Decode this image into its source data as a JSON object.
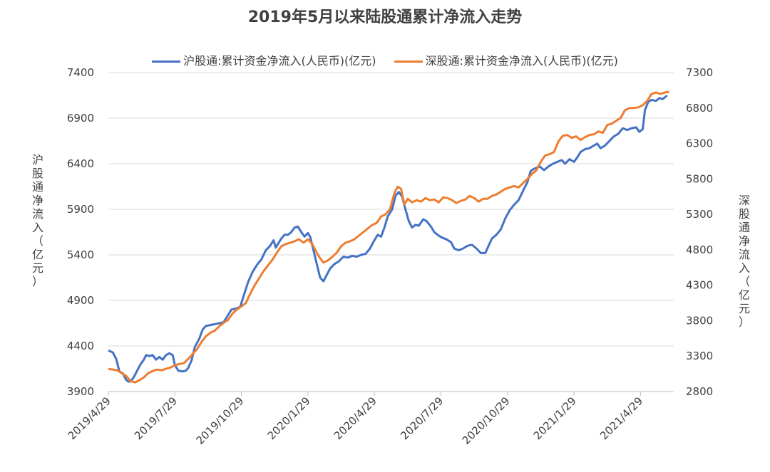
{
  "chart_data": {
    "type": "line",
    "title": "2019年5月以来陆股通累计净流入走势",
    "ylabel_left": "沪股通净流入（亿元）",
    "ylabel_right": "深股通净流入（亿元）",
    "legend_position": "top",
    "grid": true,
    "x_tick_labels": [
      "2019/4/29",
      "2019/7/29",
      "2019/10/29",
      "2020/1/29",
      "2020/4/29",
      "2020/7/29",
      "2020/10/29",
      "2021/1/29",
      "2021/4/29"
    ],
    "y_left": {
      "min": 3900,
      "max": 7400,
      "ticks": [
        3900,
        4400,
        4900,
        5400,
        5900,
        6400,
        6900,
        7400
      ]
    },
    "y_right": {
      "min": 2800,
      "max": 7300,
      "ticks": [
        2800,
        3300,
        3800,
        4300,
        4800,
        5300,
        5800,
        6300,
        6800,
        7300
      ]
    },
    "x_range_months": [
      0,
      25.5
    ],
    "series": [
      {
        "name": "沪股通:累计资金净流入(人民币)(亿元)",
        "axis": "left",
        "color": "#4472C4",
        "points": [
          [
            0,
            4350
          ],
          [
            0.2,
            4330
          ],
          [
            0.35,
            4260
          ],
          [
            0.5,
            4120
          ],
          [
            0.65,
            4100
          ],
          [
            0.8,
            4030
          ],
          [
            0.9,
            4010
          ],
          [
            1.0,
            4010
          ],
          [
            1.15,
            4060
          ],
          [
            1.3,
            4130
          ],
          [
            1.45,
            4200
          ],
          [
            1.6,
            4250
          ],
          [
            1.7,
            4300
          ],
          [
            1.85,
            4290
          ],
          [
            2.0,
            4300
          ],
          [
            2.15,
            4250
          ],
          [
            2.3,
            4280
          ],
          [
            2.45,
            4250
          ],
          [
            2.6,
            4300
          ],
          [
            2.75,
            4320
          ],
          [
            2.9,
            4300
          ],
          [
            3.0,
            4190
          ],
          [
            3.15,
            4130
          ],
          [
            3.35,
            4120
          ],
          [
            3.5,
            4130
          ],
          [
            3.6,
            4160
          ],
          [
            3.75,
            4240
          ],
          [
            3.9,
            4390
          ],
          [
            4.1,
            4480
          ],
          [
            4.25,
            4580
          ],
          [
            4.4,
            4620
          ],
          [
            4.6,
            4630
          ],
          [
            4.8,
            4640
          ],
          [
            5.0,
            4650
          ],
          [
            5.2,
            4660
          ],
          [
            5.4,
            4740
          ],
          [
            5.55,
            4800
          ],
          [
            5.75,
            4810
          ],
          [
            5.95,
            4830
          ],
          [
            6.1,
            4950
          ],
          [
            6.3,
            5100
          ],
          [
            6.5,
            5210
          ],
          [
            6.7,
            5290
          ],
          [
            6.9,
            5350
          ],
          [
            7.1,
            5450
          ],
          [
            7.3,
            5500
          ],
          [
            7.45,
            5560
          ],
          [
            7.55,
            5480
          ],
          [
            7.65,
            5520
          ],
          [
            7.8,
            5580
          ],
          [
            7.95,
            5620
          ],
          [
            8.1,
            5620
          ],
          [
            8.25,
            5650
          ],
          [
            8.4,
            5700
          ],
          [
            8.55,
            5710
          ],
          [
            8.7,
            5650
          ],
          [
            8.85,
            5600
          ],
          [
            9.0,
            5640
          ],
          [
            9.1,
            5600
          ],
          [
            9.25,
            5450
          ],
          [
            9.4,
            5300
          ],
          [
            9.55,
            5150
          ],
          [
            9.7,
            5110
          ],
          [
            9.85,
            5180
          ],
          [
            10.0,
            5250
          ],
          [
            10.2,
            5300
          ],
          [
            10.4,
            5330
          ],
          [
            10.6,
            5380
          ],
          [
            10.8,
            5370
          ],
          [
            11.0,
            5390
          ],
          [
            11.2,
            5380
          ],
          [
            11.4,
            5400
          ],
          [
            11.6,
            5410
          ],
          [
            11.8,
            5470
          ],
          [
            11.95,
            5540
          ],
          [
            12.15,
            5620
          ],
          [
            12.3,
            5600
          ],
          [
            12.45,
            5700
          ],
          [
            12.6,
            5820
          ],
          [
            12.8,
            5900
          ],
          [
            12.95,
            6050
          ],
          [
            13.1,
            6090
          ],
          [
            13.25,
            6040
          ],
          [
            13.4,
            5900
          ],
          [
            13.55,
            5770
          ],
          [
            13.7,
            5700
          ],
          [
            13.85,
            5730
          ],
          [
            14.0,
            5720
          ],
          [
            14.2,
            5790
          ],
          [
            14.35,
            5770
          ],
          [
            14.55,
            5710
          ],
          [
            14.7,
            5650
          ],
          [
            14.9,
            5610
          ],
          [
            15.05,
            5590
          ],
          [
            15.25,
            5570
          ],
          [
            15.45,
            5540
          ],
          [
            15.6,
            5470
          ],
          [
            15.8,
            5450
          ],
          [
            16.0,
            5470
          ],
          [
            16.2,
            5500
          ],
          [
            16.4,
            5510
          ],
          [
            16.6,
            5470
          ],
          [
            16.8,
            5420
          ],
          [
            17.0,
            5420
          ],
          [
            17.15,
            5500
          ],
          [
            17.3,
            5580
          ],
          [
            17.5,
            5620
          ],
          [
            17.7,
            5680
          ],
          [
            17.9,
            5800
          ],
          [
            18.1,
            5890
          ],
          [
            18.3,
            5950
          ],
          [
            18.5,
            6000
          ],
          [
            18.7,
            6100
          ],
          [
            18.9,
            6200
          ],
          [
            19.05,
            6320
          ],
          [
            19.25,
            6350
          ],
          [
            19.45,
            6370
          ],
          [
            19.65,
            6330
          ],
          [
            19.85,
            6370
          ],
          [
            20.05,
            6400
          ],
          [
            20.25,
            6420
          ],
          [
            20.45,
            6440
          ],
          [
            20.6,
            6400
          ],
          [
            20.8,
            6450
          ],
          [
            21.0,
            6420
          ],
          [
            21.15,
            6470
          ],
          [
            21.3,
            6530
          ],
          [
            21.5,
            6560
          ],
          [
            21.7,
            6570
          ],
          [
            21.9,
            6600
          ],
          [
            22.05,
            6620
          ],
          [
            22.2,
            6570
          ],
          [
            22.4,
            6600
          ],
          [
            22.6,
            6650
          ],
          [
            22.8,
            6700
          ],
          [
            23.0,
            6730
          ],
          [
            23.2,
            6790
          ],
          [
            23.4,
            6770
          ],
          [
            23.6,
            6790
          ],
          [
            23.8,
            6800
          ],
          [
            23.95,
            6750
          ],
          [
            24.1,
            6780
          ],
          [
            24.2,
            6990
          ],
          [
            24.35,
            7080
          ],
          [
            24.5,
            7100
          ],
          [
            24.7,
            7090
          ],
          [
            24.85,
            7120
          ],
          [
            25.0,
            7110
          ],
          [
            25.2,
            7150
          ]
        ]
      },
      {
        "name": "深股通:累计资金净流入(人民币)(亿元)",
        "axis": "right",
        "color": "#ED7D31",
        "points": [
          [
            0,
            3120
          ],
          [
            0.2,
            3110
          ],
          [
            0.4,
            3100
          ],
          [
            0.6,
            3060
          ],
          [
            0.8,
            3020
          ],
          [
            1.0,
            2950
          ],
          [
            1.2,
            2930
          ],
          [
            1.4,
            2960
          ],
          [
            1.6,
            3000
          ],
          [
            1.8,
            3060
          ],
          [
            2.0,
            3090
          ],
          [
            2.2,
            3110
          ],
          [
            2.4,
            3100
          ],
          [
            2.6,
            3120
          ],
          [
            2.8,
            3140
          ],
          [
            3.0,
            3170
          ],
          [
            3.2,
            3190
          ],
          [
            3.4,
            3200
          ],
          [
            3.6,
            3260
          ],
          [
            3.8,
            3330
          ],
          [
            4.0,
            3400
          ],
          [
            4.2,
            3500
          ],
          [
            4.4,
            3580
          ],
          [
            4.6,
            3630
          ],
          [
            4.8,
            3660
          ],
          [
            5.0,
            3720
          ],
          [
            5.2,
            3770
          ],
          [
            5.4,
            3810
          ],
          [
            5.6,
            3900
          ],
          [
            5.8,
            3960
          ],
          [
            6.0,
            4000
          ],
          [
            6.2,
            4050
          ],
          [
            6.4,
            4180
          ],
          [
            6.6,
            4300
          ],
          [
            6.8,
            4400
          ],
          [
            7.0,
            4500
          ],
          [
            7.2,
            4580
          ],
          [
            7.4,
            4660
          ],
          [
            7.6,
            4760
          ],
          [
            7.8,
            4850
          ],
          [
            8.0,
            4880
          ],
          [
            8.2,
            4900
          ],
          [
            8.4,
            4920
          ],
          [
            8.6,
            4950
          ],
          [
            8.8,
            4900
          ],
          [
            9.0,
            4950
          ],
          [
            9.2,
            4880
          ],
          [
            9.4,
            4760
          ],
          [
            9.55,
            4680
          ],
          [
            9.7,
            4620
          ],
          [
            9.9,
            4650
          ],
          [
            10.1,
            4700
          ],
          [
            10.3,
            4760
          ],
          [
            10.5,
            4850
          ],
          [
            10.7,
            4900
          ],
          [
            10.9,
            4920
          ],
          [
            11.1,
            4950
          ],
          [
            11.3,
            5000
          ],
          [
            11.5,
            5050
          ],
          [
            11.7,
            5100
          ],
          [
            11.9,
            5150
          ],
          [
            12.1,
            5180
          ],
          [
            12.3,
            5270
          ],
          [
            12.5,
            5300
          ],
          [
            12.7,
            5370
          ],
          [
            12.9,
            5600
          ],
          [
            13.05,
            5690
          ],
          [
            13.2,
            5660
          ],
          [
            13.35,
            5440
          ],
          [
            13.5,
            5520
          ],
          [
            13.7,
            5470
          ],
          [
            13.9,
            5500
          ],
          [
            14.1,
            5480
          ],
          [
            14.3,
            5530
          ],
          [
            14.5,
            5500
          ],
          [
            14.7,
            5510
          ],
          [
            14.9,
            5470
          ],
          [
            15.1,
            5540
          ],
          [
            15.3,
            5530
          ],
          [
            15.5,
            5500
          ],
          [
            15.7,
            5460
          ],
          [
            15.9,
            5490
          ],
          [
            16.1,
            5510
          ],
          [
            16.3,
            5560
          ],
          [
            16.5,
            5530
          ],
          [
            16.7,
            5480
          ],
          [
            16.9,
            5520
          ],
          [
            17.1,
            5520
          ],
          [
            17.3,
            5560
          ],
          [
            17.5,
            5580
          ],
          [
            17.7,
            5620
          ],
          [
            17.9,
            5660
          ],
          [
            18.1,
            5680
          ],
          [
            18.3,
            5700
          ],
          [
            18.5,
            5680
          ],
          [
            18.7,
            5740
          ],
          [
            18.9,
            5800
          ],
          [
            19.1,
            5870
          ],
          [
            19.3,
            5920
          ],
          [
            19.5,
            6040
          ],
          [
            19.7,
            6130
          ],
          [
            19.9,
            6150
          ],
          [
            20.1,
            6180
          ],
          [
            20.3,
            6330
          ],
          [
            20.5,
            6410
          ],
          [
            20.7,
            6420
          ],
          [
            20.9,
            6380
          ],
          [
            21.1,
            6400
          ],
          [
            21.3,
            6350
          ],
          [
            21.5,
            6390
          ],
          [
            21.7,
            6420
          ],
          [
            21.9,
            6430
          ],
          [
            22.1,
            6470
          ],
          [
            22.3,
            6450
          ],
          [
            22.5,
            6560
          ],
          [
            22.7,
            6580
          ],
          [
            22.9,
            6620
          ],
          [
            23.1,
            6660
          ],
          [
            23.3,
            6770
          ],
          [
            23.5,
            6800
          ],
          [
            23.7,
            6800
          ],
          [
            23.9,
            6810
          ],
          [
            24.1,
            6840
          ],
          [
            24.3,
            6900
          ],
          [
            24.5,
            7000
          ],
          [
            24.7,
            7020
          ],
          [
            24.9,
            7000
          ],
          [
            25.1,
            7020
          ],
          [
            25.3,
            7030
          ]
        ]
      }
    ]
  }
}
